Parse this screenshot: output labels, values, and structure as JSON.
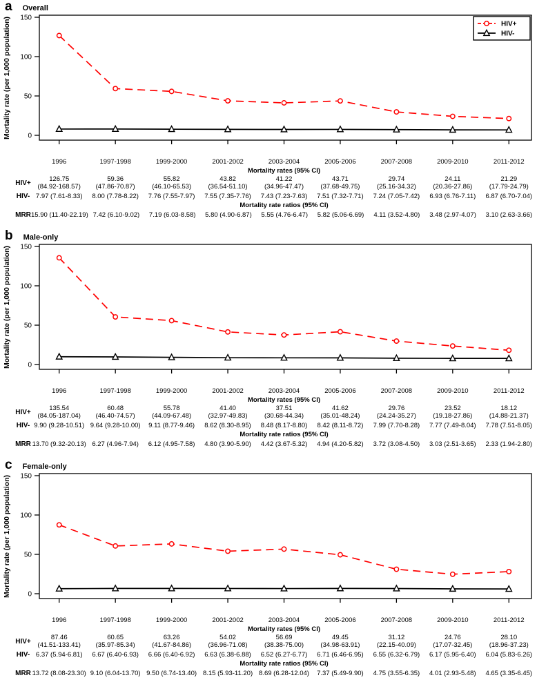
{
  "figure": {
    "ylabel": "Mortality rate (per 1,000 population)",
    "legend": [
      {
        "label": "HIV+",
        "color": "#ff0000"
      },
      {
        "label": "HIV-",
        "color": "#000000"
      }
    ]
  },
  "chart_data": [
    {
      "panel": "a",
      "title": "Overall",
      "type": "line",
      "ylabel": "Mortality rate (per 1,000 population)",
      "ylim": [
        0,
        150
      ],
      "yticks": [
        0,
        50,
        100,
        150
      ],
      "grid": false,
      "legend": true,
      "legend_position": "top-right",
      "categories": [
        "1996",
        "1997-1998",
        "1999-2000",
        "2001-2002",
        "2003-2004",
        "2005-2006",
        "2007-2008",
        "2009-2010",
        "2011-2012"
      ],
      "series": [
        {
          "name": "HIV+",
          "color": "#ff0000",
          "line": "dashed",
          "marker": "circle",
          "values": [
            126.75,
            59.36,
            55.82,
            43.82,
            41.22,
            43.71,
            29.74,
            24.11,
            21.29
          ]
        },
        {
          "name": "HIV-",
          "color": "#000000",
          "line": "solid",
          "marker": "triangle",
          "values": [
            7.97,
            8.0,
            7.76,
            7.55,
            7.43,
            7.51,
            7.24,
            6.93,
            6.87
          ]
        }
      ],
      "table": {
        "rates_header": "Mortality rates (95% CI)",
        "ratios_header": "Mortality rate ratios (95% CI)",
        "hiv_pos": {
          "label": "HIV+",
          "rates": [
            "126.75",
            "59.36",
            "55.82",
            "43.82",
            "41.22",
            "43.71",
            "29.74",
            "24.11",
            "21.29"
          ],
          "cis": [
            "(84.92-168.57)",
            "(47.86-70.87)",
            "(46.10-65.53)",
            "(36.54-51.10)",
            "(34.96-47.47)",
            "(37.68-49.75)",
            "(25.16-34.32)",
            "(20.36-27.86)",
            "(17.79-24.79)"
          ]
        },
        "hiv_neg": {
          "label": "HIV-",
          "cells": [
            "7.97 (7.61-8.33)",
            "8.00 (7.78-8.22)",
            "7.76 (7.55-7.97)",
            "7.55 (7.35-7.76)",
            "7.43 (7.23-7.63)",
            "7.51 (7.32-7.71)",
            "7.24 (7.05-7.42)",
            "6.93 (6.76-7.11)",
            "6.87 (6.70-7.04)"
          ]
        },
        "mrr": {
          "label": "MRR",
          "cells": [
            "15.90 (11.40-22.19)",
            "7.42 (6.10-9.02)",
            "7.19 (6.03-8.58)",
            "5.80 (4.90-6.87)",
            "5.55 (4.76-6.47)",
            "5.82 (5.06-6.69)",
            "4.11 (3.52-4.80)",
            "3.48 (2.97-4.07)",
            "3.10 (2.63-3.66)"
          ]
        }
      }
    },
    {
      "panel": "b",
      "title": "Male-only",
      "type": "line",
      "ylabel": "Mortality rate (per 1,000 population)",
      "ylim": [
        0,
        150
      ],
      "yticks": [
        0,
        50,
        100,
        150
      ],
      "grid": false,
      "legend": false,
      "categories": [
        "1996",
        "1997-1998",
        "1999-2000",
        "2001-2002",
        "2003-2004",
        "2005-2006",
        "2007-2008",
        "2009-2010",
        "2011-2012"
      ],
      "series": [
        {
          "name": "HIV+",
          "color": "#ff0000",
          "line": "dashed",
          "marker": "circle",
          "values": [
            135.54,
            60.48,
            55.78,
            41.4,
            37.51,
            41.62,
            29.76,
            23.52,
            18.12
          ]
        },
        {
          "name": "HIV-",
          "color": "#000000",
          "line": "solid",
          "marker": "triangle",
          "values": [
            9.9,
            9.64,
            9.11,
            8.62,
            8.48,
            8.42,
            7.99,
            7.77,
            7.78
          ]
        }
      ],
      "table": {
        "rates_header": "Mortality rates (95% CI)",
        "ratios_header": "Mortality rate ratios (95% CI)",
        "hiv_pos": {
          "label": "HIV+",
          "rates": [
            "135.54",
            "60.48",
            "55.78",
            "41.40",
            "37.51",
            "41.62",
            "29.76",
            "23.52",
            "18.12"
          ],
          "cis": [
            "(84.05-187.04)",
            "(46.40-74.57)",
            "(44.09-67.48)",
            "(32.97-49.83)",
            "(30.68-44.34)",
            "(35.01-48.24)",
            "(24.24-35.27)",
            "(19.18-27.86)",
            "(14.88-21.37)"
          ]
        },
        "hiv_neg": {
          "label": "HIV-",
          "cells": [
            "9.90 (9.28-10.51)",
            "9.64 (9.28-10.00)",
            "9.11 (8.77-9.46)",
            "8.62 (8.30-8.95)",
            "8.48 (8.17-8.80)",
            "8.42 (8.11-8.72)",
            "7.99 (7.70-8.28)",
            "7.77 (7.49-8.04)",
            "7.78 (7.51-8.05)"
          ]
        },
        "mrr": {
          "label": "MRR",
          "cells": [
            "13.70 (9.32-20.13)",
            "6.27 (4.96-7.94)",
            "6.12 (4.95-7.58)",
            "4.80 (3.90-5.90)",
            "4.42 (3.67-5.32)",
            "4.94 (4.20-5.82)",
            "3.72 (3.08-4.50)",
            "3.03 (2.51-3.65)",
            "2.33 (1.94-2.80)"
          ]
        }
      }
    },
    {
      "panel": "c",
      "title": "Female-only",
      "type": "line",
      "ylabel": "Mortality rate (per 1,000 population)",
      "ylim": [
        0,
        150
      ],
      "yticks": [
        0,
        50,
        100,
        150
      ],
      "grid": false,
      "legend": false,
      "categories": [
        "1996",
        "1997-1998",
        "1999-2000",
        "2001-2002",
        "2003-2004",
        "2005-2006",
        "2007-2008",
        "2009-2010",
        "2011-2012"
      ],
      "series": [
        {
          "name": "HIV+",
          "color": "#ff0000",
          "line": "dashed",
          "marker": "circle",
          "values": [
            87.46,
            60.65,
            63.26,
            54.02,
            56.69,
            49.45,
            31.12,
            24.76,
            28.1
          ]
        },
        {
          "name": "HIV-",
          "color": "#000000",
          "line": "solid",
          "marker": "triangle",
          "values": [
            6.37,
            6.67,
            6.66,
            6.63,
            6.52,
            6.71,
            6.55,
            6.17,
            6.04
          ]
        }
      ],
      "table": {
        "rates_header": "Mortality rates (95% CI)",
        "ratios_header": "Mortality rate ratios (95% CI)",
        "hiv_pos": {
          "label": "HIV+",
          "rates": [
            "87.46",
            "60.65",
            "63.26",
            "54.02",
            "56.69",
            "49.45",
            "31.12",
            "24.76",
            "28.10"
          ],
          "cis": [
            "(41.51-133.41)",
            "(35.97-85.34)",
            "(41.67-84.86)",
            "(36.96-71.08)",
            "(38.38-75.00)",
            "(34.98-63.91)",
            "(22.15-40.09)",
            "(17.07-32.45)",
            "(18.96-37.23)"
          ]
        },
        "hiv_neg": {
          "label": "HIV-",
          "cells": [
            "6.37 (5.94-6.81)",
            "6.67 (6.40-6.93)",
            "6.66 (6.40-6.92)",
            "6.63 (6.38-6.88)",
            "6.52 (6.27-6.77)",
            "6.71 (6.46-6.95)",
            "6.55 (6.32-6.79)",
            "6.17 (5.95-6.40)",
            "6.04 (5.83-6.26)"
          ]
        },
        "mrr": {
          "label": "MRR",
          "cells": [
            "13.72 (8.08-23.30)",
            "9.10 (6.04-13.70)",
            "9.50 (6.74-13.40)",
            "8.15 (5.93-11.20)",
            "8.69 (6.28-12.04)",
            "7.37 (5.49-9.90)",
            "4.75 (3.55-6.35)",
            "4.01 (2.93-5.48)",
            "4.65 (3.35-6.45)"
          ]
        }
      }
    }
  ]
}
